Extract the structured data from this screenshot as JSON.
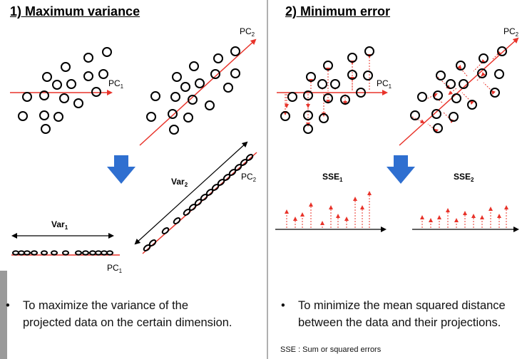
{
  "left_panel": {
    "title": "1) Maximum variance",
    "pc1_label": "PC",
    "pc1_sub": "1",
    "pc2_label": "PC",
    "pc2_sub": "2",
    "var1_label": "Var",
    "var1_sub": "1",
    "var2_label": "Var",
    "var2_sub": "2",
    "bullet": "•",
    "bullet_line1": "To maximize the variance of the",
    "bullet_line2": "projected data on the certain dimension."
  },
  "right_panel": {
    "title": "2) Minimum error",
    "pc1_label": "PC",
    "pc1_sub": "1",
    "pc2_label": "PC",
    "pc2_sub": "2",
    "sse1_label": "SSE",
    "sse1_sub": "1",
    "sse2_label": "SSE",
    "sse2_sub": "2",
    "bullet": "•",
    "bullet_line1": "To minimize the mean squared distance",
    "bullet_line2": "between the data and their projections.",
    "footnote": "SSE : Sum or squared errors"
  },
  "colors": {
    "axis_red": "#e8332a",
    "arrow_blue": "#2f6fd0",
    "point_black": "#000000"
  }
}
